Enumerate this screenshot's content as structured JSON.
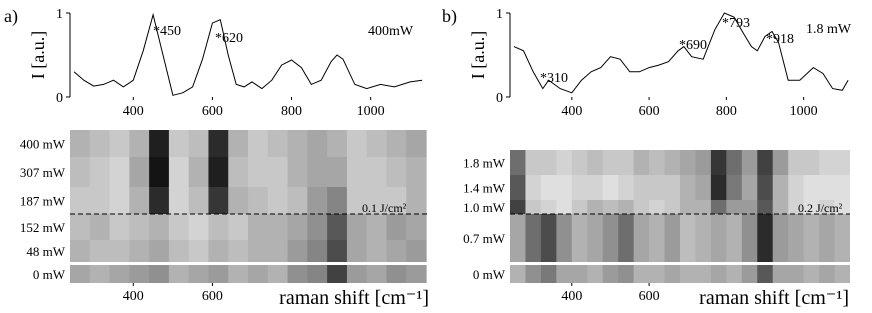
{
  "chart_data": [
    {
      "type": "line",
      "panel": "a)",
      "ylabel": "I [a.u.]",
      "x": [
        250,
        275,
        300,
        325,
        350,
        375,
        400,
        425,
        450,
        475,
        500,
        525,
        550,
        575,
        600,
        620,
        640,
        660,
        680,
        700,
        725,
        750,
        775,
        800,
        825,
        850,
        875,
        900,
        915,
        930,
        960,
        990,
        1025,
        1060,
        1100,
        1130
      ],
      "values": [
        0.3,
        0.2,
        0.13,
        0.15,
        0.2,
        0.12,
        0.2,
        0.55,
        0.98,
        0.5,
        0.02,
        0.05,
        0.12,
        0.45,
        0.88,
        0.92,
        0.5,
        0.15,
        0.12,
        0.18,
        0.1,
        0.2,
        0.38,
        0.44,
        0.35,
        0.15,
        0.2,
        0.42,
        0.5,
        0.45,
        0.15,
        0.1,
        0.15,
        0.12,
        0.18,
        0.2
      ],
      "xlim": [
        240,
        1150
      ],
      "xticks": [
        400,
        600,
        800,
        1000
      ],
      "ylim": [
        0,
        1
      ],
      "yticks": [
        0,
        1
      ],
      "color": "#000000",
      "annotations": [
        "*450",
        "*620",
        "400mW"
      ]
    },
    {
      "type": "heatmap",
      "rows": [
        "400 mW",
        "307 mW",
        "187 mW",
        "152 mW",
        "48 mW",
        "0 mW"
      ],
      "x": [
        265,
        315,
        365,
        415,
        465,
        515,
        565,
        615,
        665,
        715,
        765,
        815,
        865,
        915,
        965,
        1015,
        1065,
        1115
      ],
      "values": [
        [
          0.3,
          0.25,
          0.2,
          0.3,
          0.95,
          0.2,
          0.25,
          0.9,
          0.3,
          0.2,
          0.25,
          0.3,
          0.35,
          0.3,
          0.2,
          0.25,
          0.3,
          0.35
        ],
        [
          0.25,
          0.2,
          0.15,
          0.35,
          1.0,
          0.15,
          0.3,
          0.95,
          0.25,
          0.2,
          0.2,
          0.3,
          0.35,
          0.35,
          0.2,
          0.2,
          0.25,
          0.3
        ],
        [
          0.2,
          0.2,
          0.15,
          0.3,
          0.9,
          0.15,
          0.25,
          0.85,
          0.3,
          0.25,
          0.2,
          0.25,
          0.4,
          0.5,
          0.2,
          0.2,
          0.2,
          0.3
        ],
        [
          0.25,
          0.3,
          0.2,
          0.25,
          0.3,
          0.2,
          0.15,
          0.25,
          0.2,
          0.3,
          0.3,
          0.35,
          0.45,
          0.7,
          0.35,
          0.3,
          0.4,
          0.35
        ],
        [
          0.3,
          0.25,
          0.25,
          0.3,
          0.35,
          0.25,
          0.2,
          0.3,
          0.25,
          0.3,
          0.3,
          0.4,
          0.5,
          0.75,
          0.35,
          0.3,
          0.35,
          0.4
        ],
        [
          0.35,
          0.3,
          0.35,
          0.4,
          0.45,
          0.3,
          0.35,
          0.4,
          0.3,
          0.35,
          0.3,
          0.45,
          0.5,
          0.8,
          0.4,
          0.35,
          0.45,
          0.4
        ]
      ],
      "xlim": [
        240,
        1150
      ],
      "xticks": [
        400,
        600
      ],
      "xlabel": "raman shift [cm⁻¹]",
      "annotation": "0.1 J/cm²"
    },
    {
      "type": "line",
      "panel": "b)",
      "ylabel": "I [a.u.]",
      "x": [
        250,
        275,
        300,
        325,
        340,
        370,
        400,
        425,
        450,
        475,
        500,
        525,
        550,
        575,
        600,
        625,
        650,
        675,
        690,
        710,
        740,
        770,
        795,
        820,
        845,
        865,
        880,
        900,
        918,
        935,
        960,
        990,
        1025,
        1050,
        1075,
        1100,
        1115
      ],
      "values": [
        0.6,
        0.55,
        0.3,
        0.1,
        0.2,
        0.1,
        0.05,
        0.2,
        0.3,
        0.35,
        0.48,
        0.45,
        0.3,
        0.3,
        0.35,
        0.38,
        0.42,
        0.55,
        0.6,
        0.48,
        0.45,
        0.8,
        1.0,
        0.95,
        0.75,
        0.6,
        0.55,
        0.72,
        0.78,
        0.65,
        0.2,
        0.2,
        0.35,
        0.28,
        0.1,
        0.08,
        0.2
      ],
      "xlim": [
        240,
        1120
      ],
      "xticks": [
        400,
        600,
        800,
        1000
      ],
      "ylim": [
        0,
        1
      ],
      "yticks": [
        0,
        1
      ],
      "color": "#000000",
      "annotations": [
        "*310",
        "*690",
        "*793",
        "*918",
        "1.8 mW"
      ]
    },
    {
      "type": "heatmap",
      "rows": [
        "1.8 mW",
        "1.4 mW",
        "1.0 mW",
        "0.7 mW",
        "0 mW"
      ],
      "x": [
        260,
        300,
        340,
        380,
        420,
        460,
        500,
        540,
        580,
        620,
        660,
        700,
        740,
        780,
        820,
        860,
        900,
        940,
        980,
        1020,
        1060,
        1100
      ],
      "values": [
        [
          0.6,
          0.2,
          0.2,
          0.15,
          0.2,
          0.25,
          0.2,
          0.2,
          0.3,
          0.25,
          0.3,
          0.35,
          0.4,
          0.85,
          0.6,
          0.4,
          0.8,
          0.4,
          0.2,
          0.2,
          0.15,
          0.15
        ],
        [
          0.7,
          0.15,
          0.1,
          0.1,
          0.15,
          0.15,
          0.1,
          0.15,
          0.2,
          0.2,
          0.2,
          0.3,
          0.35,
          0.9,
          0.55,
          0.35,
          0.75,
          0.3,
          0.15,
          0.1,
          0.1,
          0.1
        ],
        [
          0.8,
          0.2,
          0.15,
          0.1,
          0.2,
          0.3,
          0.25,
          0.3,
          0.2,
          0.15,
          0.2,
          0.3,
          0.3,
          0.6,
          0.4,
          0.4,
          0.7,
          0.3,
          0.15,
          0.1,
          0.15,
          0.1
        ],
        [
          0.35,
          0.6,
          0.75,
          0.45,
          0.3,
          0.35,
          0.45,
          0.6,
          0.35,
          0.3,
          0.4,
          0.25,
          0.3,
          0.35,
          0.3,
          0.45,
          0.9,
          0.4,
          0.35,
          0.3,
          0.35,
          0.3
        ],
        [
          0.3,
          0.45,
          0.55,
          0.35,
          0.35,
          0.3,
          0.4,
          0.45,
          0.3,
          0.3,
          0.35,
          0.3,
          0.3,
          0.35,
          0.3,
          0.4,
          0.7,
          0.35,
          0.35,
          0.3,
          0.35,
          0.3
        ]
      ],
      "xlim": [
        240,
        1120
      ],
      "xticks": [
        400,
        600
      ],
      "xlabel": "raman shift [cm⁻¹]",
      "annotation": "0.2 J/cm²"
    }
  ]
}
